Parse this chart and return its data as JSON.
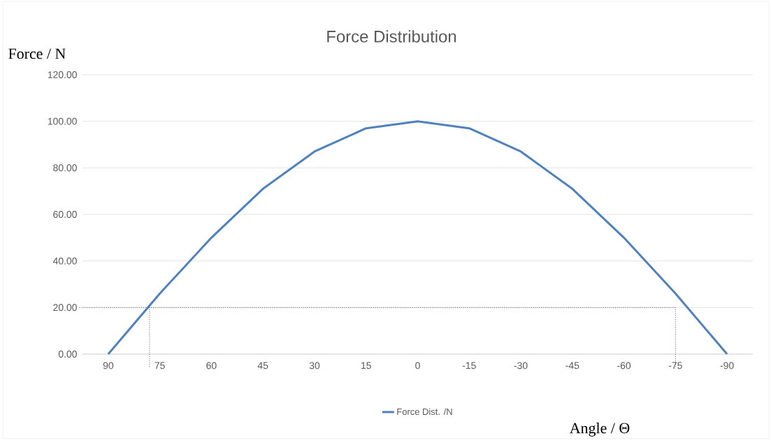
{
  "chart_data": {
    "type": "line",
    "title": "Force Distribution",
    "xlabel": "Angle / Θ",
    "ylabel": "Force / N",
    "x": [
      90,
      75,
      60,
      45,
      30,
      15,
      0,
      -15,
      -30,
      -45,
      -60,
      -75,
      -90
    ],
    "xlim": [
      97.5,
      -97.5
    ],
    "xticks": [
      90,
      75,
      60,
      45,
      30,
      15,
      0,
      -15,
      -30,
      -45,
      -60,
      -75,
      -90
    ],
    "ylim": [
      0,
      120
    ],
    "yticks": [
      {
        "value": 0,
        "label": "0.00"
      },
      {
        "value": 20,
        "label": "20.00"
      },
      {
        "value": 40,
        "label": "40.00"
      },
      {
        "value": 60,
        "label": "60.00"
      },
      {
        "value": 80,
        "label": "80.00"
      },
      {
        "value": 100,
        "label": "100.00"
      },
      {
        "value": 120,
        "label": "120.00"
      }
    ],
    "series": [
      {
        "name": "Force Dist. /N",
        "color": "#4f81bd",
        "values": [
          0,
          26,
          50,
          71,
          87,
          97,
          100,
          97,
          87,
          71,
          50,
          26,
          0
        ]
      }
    ],
    "ref_lines": [
      {
        "axis": "y",
        "value": 20,
        "color": "#000000",
        "line_style": "dotted"
      },
      {
        "axis": "x",
        "value": 78,
        "color": "#000000",
        "line_style": "dotted"
      },
      {
        "axis": "x",
        "value": -75,
        "color": "#000000",
        "line_style": "dotted"
      }
    ],
    "grid": "y",
    "legend": "bottom",
    "marker": "none",
    "line_style": "solid"
  }
}
